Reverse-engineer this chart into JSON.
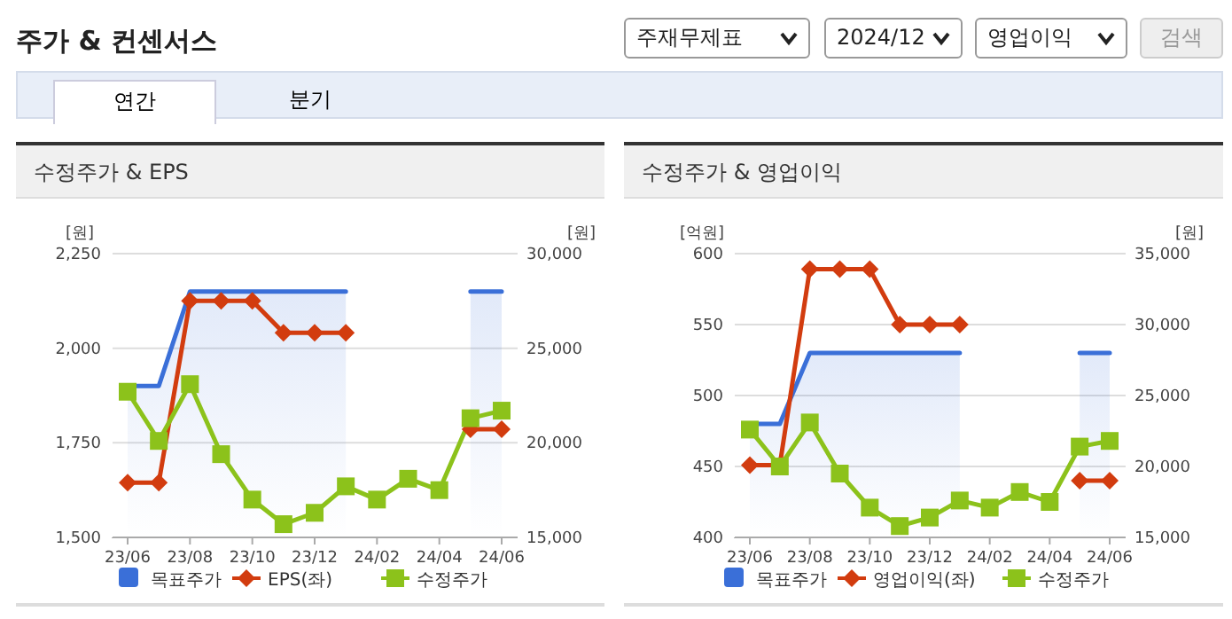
{
  "chart_data": [
    {
      "type": "line",
      "title": "수정주가 & EPS",
      "ylabel": "[원]",
      "y2label": "[원]",
      "annotations": [
        "주가 & 컨센서스",
        "주재무제표",
        "2024/12",
        "영업이익",
        "검색",
        "연간",
        "분기"
      ],
      "categories": [
        "23/06",
        null,
        "23/08",
        null,
        "23/10",
        null,
        "23/12",
        null,
        "24/02",
        null,
        "24/04",
        null,
        "24/06"
      ],
      "ylim": [
        1500,
        2250
      ],
      "yticks": [
        {
          "value": 1500,
          "label": "1,500"
        },
        {
          "value": 1750,
          "label": "1,750"
        },
        {
          "value": 2000,
          "label": "2,000"
        },
        {
          "value": 2250,
          "label": "2,250"
        }
      ],
      "y2lim": [
        15000,
        30000
      ],
      "y2ticks": [
        {
          "value": 15000,
          "label": "15,000"
        },
        {
          "value": 20000,
          "label": "20,000"
        },
        {
          "value": 25000,
          "label": "25,000"
        },
        {
          "value": 30000,
          "label": "30,000"
        }
      ],
      "grid": "y",
      "legend": "bottom",
      "series": [
        {
          "name": "목표주가",
          "type": "area",
          "axis": "y2",
          "color": "#3a6fd8",
          "marker": "none",
          "values": [
            23000,
            23000,
            28000,
            28000,
            28000,
            28000,
            28000,
            28000,
            null,
            null,
            null,
            28000,
            28000
          ]
        },
        {
          "name": "EPS(좌)",
          "color": "#d23c0f",
          "marker": "diamond",
          "values": [
            1645,
            1645,
            2125,
            2125,
            2125,
            2041,
            2041,
            2041,
            null,
            null,
            null,
            1786,
            1786
          ]
        },
        {
          "name": "수정주가",
          "axis": "y2",
          "color": "#8cc21b",
          "marker": "square",
          "values": [
            22700,
            20100,
            23100,
            19400,
            17000,
            15700,
            16300,
            17700,
            17000,
            18100,
            17500,
            21300,
            21700
          ]
        }
      ]
    },
    {
      "type": "line",
      "title": "수정주가 & 영업이익",
      "ylabel": "[억원]",
      "y2label": "[원]",
      "categories": [
        "23/06",
        null,
        "23/08",
        null,
        "23/10",
        null,
        "23/12",
        null,
        "24/02",
        null,
        "24/04",
        null,
        "24/06"
      ],
      "ylim": [
        400,
        600
      ],
      "yticks": [
        400,
        450,
        500,
        550,
        600
      ],
      "y2lim": [
        15000,
        35000
      ],
      "y2ticks": [
        {
          "value": 15000,
          "label": "15,000"
        },
        {
          "value": 20000,
          "label": "20,000"
        },
        {
          "value": 25000,
          "label": "25,000"
        },
        {
          "value": 30000,
          "label": "30,000"
        },
        {
          "value": 35000,
          "label": "35,000"
        }
      ],
      "grid": "y",
      "legend": "bottom",
      "series": [
        {
          "name": "목표주가",
          "type": "area",
          "axis": "y2",
          "color": "#3a6fd8",
          "marker": "none",
          "values": [
            23000,
            23000,
            28000,
            28000,
            28000,
            28000,
            28000,
            28000,
            null,
            null,
            null,
            28000,
            28000
          ]
        },
        {
          "name": "영업이익(좌)",
          "color": "#d23c0f",
          "marker": "diamond",
          "values": [
            451,
            451,
            589,
            589,
            589,
            550,
            550,
            550,
            null,
            null,
            null,
            440,
            440
          ]
        },
        {
          "name": "수정주가",
          "axis": "y2",
          "color": "#8cc21b",
          "marker": "square",
          "values": [
            22600,
            20000,
            23100,
            19500,
            17100,
            15800,
            16400,
            17600,
            17100,
            18200,
            17500,
            21400,
            21800
          ]
        }
      ]
    }
  ]
}
